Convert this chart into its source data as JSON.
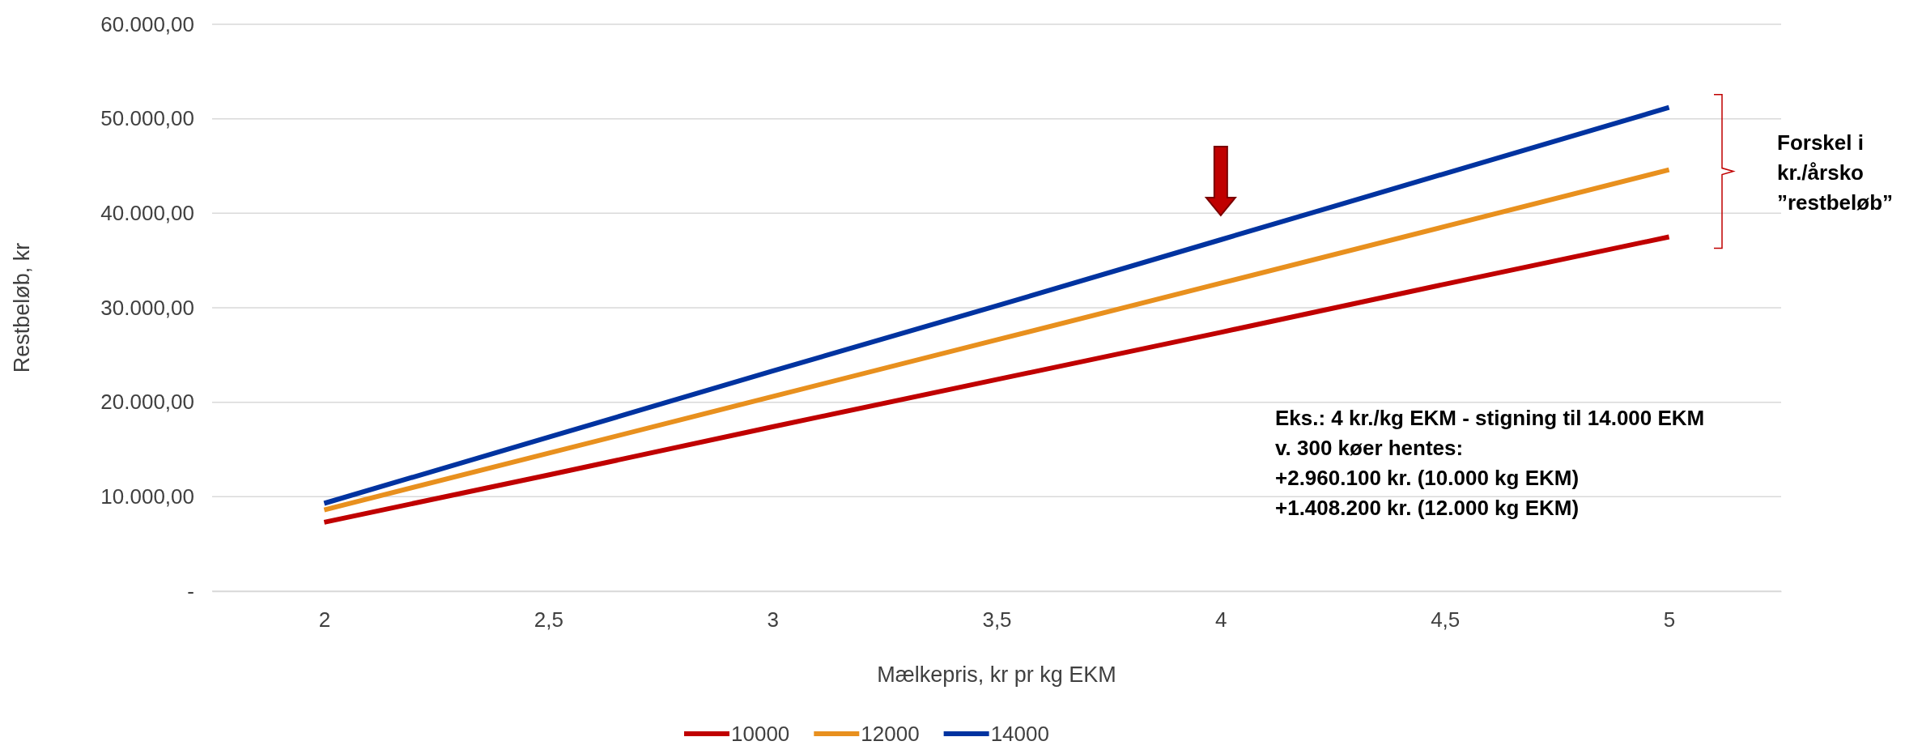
{
  "chart_data": {
    "type": "line",
    "xlabel": "Mælkepris, kr pr kg EKM",
    "ylabel": "Restbeløb, kr",
    "x": [
      2,
      2.5,
      3,
      3.5,
      4,
      4.5,
      5
    ],
    "xlim": [
      1.75,
      5.25
    ],
    "xticks": [
      2,
      {
        "value": 2.5,
        "label": "2,5"
      },
      3,
      {
        "value": 3.5,
        "label": "3,5"
      },
      4,
      {
        "value": 4.5,
        "label": "4,5"
      },
      5
    ],
    "series": [
      {
        "name": "10000",
        "color": "#c00000",
        "values": [
          7300,
          12300,
          17400,
          22400,
          27400,
          32500,
          37500
        ]
      },
      {
        "name": "12000",
        "color": "#e8901e",
        "values": [
          8600,
          14600,
          20600,
          26600,
          32600,
          38600,
          44600
        ]
      },
      {
        "name": "14000",
        "color": "#0033a0",
        "values": [
          9300,
          16300,
          23300,
          30200,
          37200,
          44200,
          51200
        ]
      }
    ],
    "ylim": [
      0,
      60000
    ],
    "yticks": [
      {
        "value": 0,
        "label": "-"
      },
      {
        "value": 10000,
        "label": "10.000,00"
      },
      {
        "value": 20000,
        "label": "20.000,00"
      },
      {
        "value": 30000,
        "label": "30.000,00"
      },
      {
        "value": 40000,
        "label": "40.000,00"
      },
      {
        "value": 50000,
        "label": "50.000,00"
      },
      {
        "value": 60000,
        "label": "60.000,00"
      }
    ],
    "grid": "y",
    "legend": "bottom",
    "marker": "none",
    "line_style": "solid",
    "annotations": [
      "Forskel i\nkr./årsko\n”restbeløb”",
      "Eks.: 4 kr./kg EKM - stigning til 14.000 EKM\nv. 300 køer hentes:\n+2.960.100 kr. (10.000 kg EKM)\n+1.408.200 kr. (12.000 kg EKM)"
    ]
  }
}
